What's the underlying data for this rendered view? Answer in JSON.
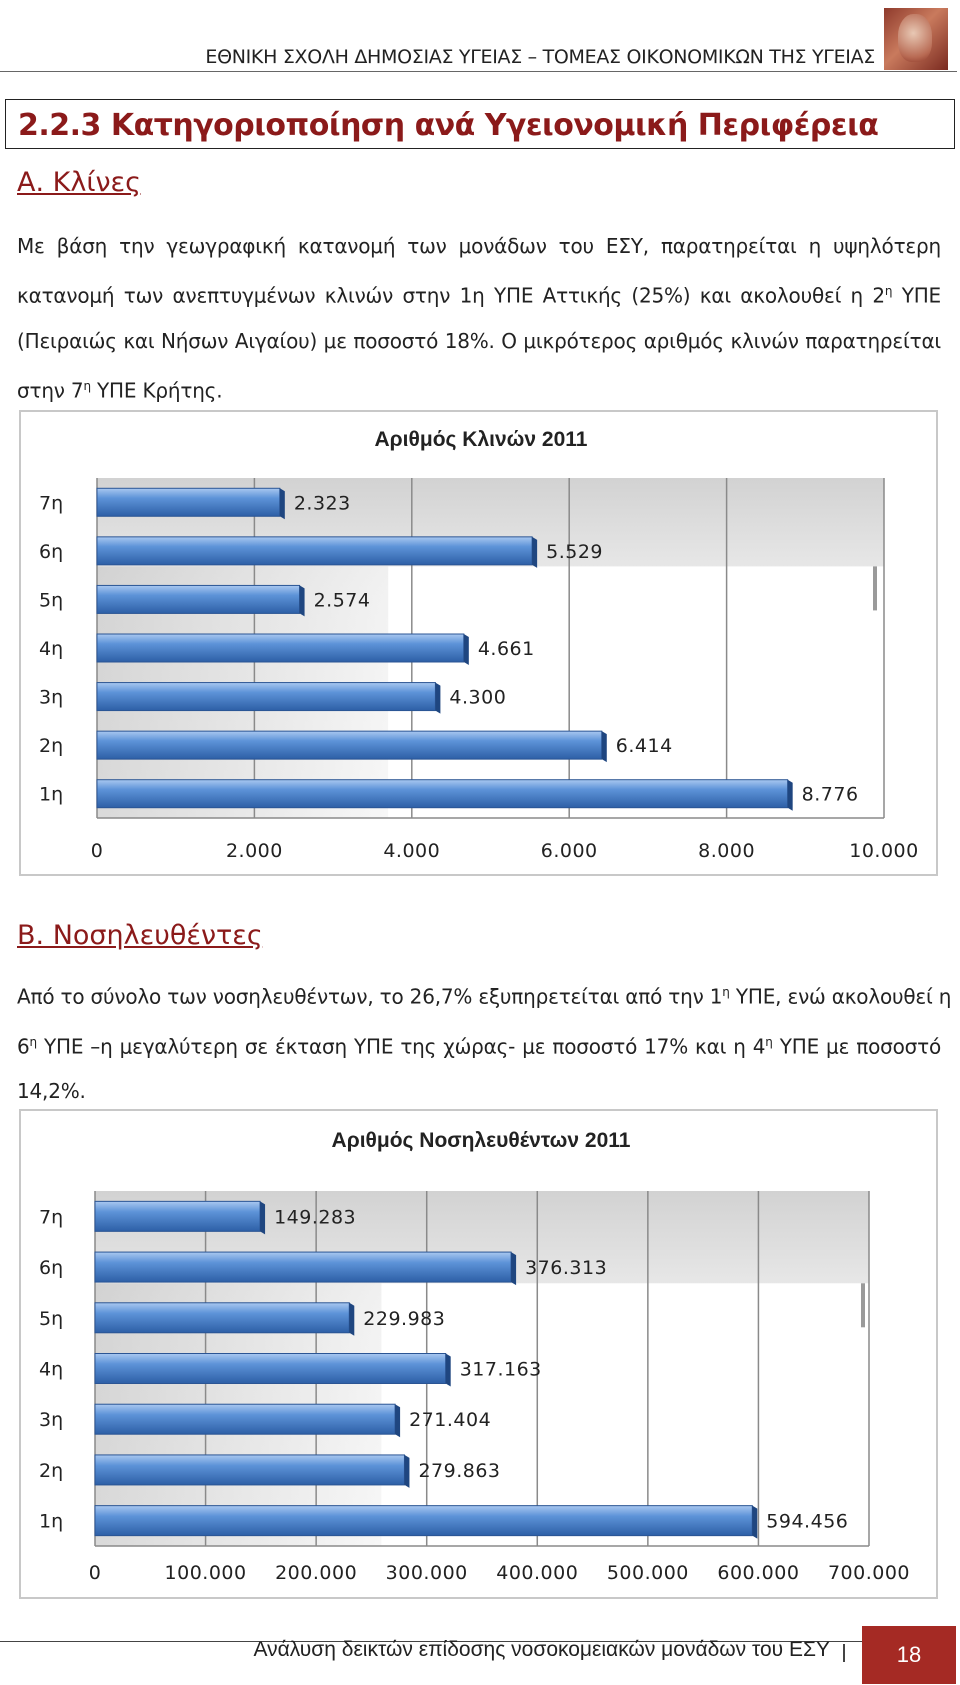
{
  "header": {
    "text": "ΕΘΝΙΚΗ ΣΧΟΛΗ ΔΗΜΟΣΙΑΣ ΥΓΕΙΑΣ – ΤΟΜΕΑΣ ΟΙΚΟΝΟΜΙΚΩΝ ΤΗΣ ΥΓΕΙΑΣ"
  },
  "section": {
    "title": "2.2.3  Κατηγοριοποίηση ανά Υγειονομική Περιφέρεια"
  },
  "partA": {
    "heading": "Α. Κλίνες",
    "l1": "Με βάση την γεωγραφική κατανομή των μονάδων του ΕΣΥ, παρατηρείται η υψηλότερη",
    "l2a": "κατανομή των ανεπτυγμένων κλινών στην 1η ΥΠΕ Αττικής (25%) και ακολουθεί η 2",
    "l2sup": "η",
    "l2b": " ΥΠΕ",
    "l3": "(Πειραιώς και Νήσων Αιγαίου) με ποσοστό 18%. Ο μικρότερος αριθμός κλινών παρατηρείται",
    "l4a": "στην 7",
    "l4sup": "η",
    "l4b": " ΥΠΕ Κρήτης."
  },
  "partB": {
    "heading": "Β. Νοσηλευθέντες",
    "l1a": "Από το σύνολο των νοσηλευθέντων, το 26,7% εξυπηρετείται από την 1",
    "l1sup": "η",
    "l1b": " ΥΠΕ, ενώ ακολουθεί η",
    "l2a": "6",
    "l2sup": "η",
    "l2b": " ΥΠΕ –η μεγαλύτερη σε έκταση ΥΠΕ της χώρας- με ποσοστό 17% και η 4",
    "l2sup2": "η",
    "l2c": " ΥΠΕ με ποσοστό",
    "l3": "14,2%."
  },
  "chart_data": [
    {
      "type": "bar",
      "orientation": "horizontal",
      "title": "Αριθμός Κλινών 2011",
      "categories": [
        "7η",
        "6η",
        "5η",
        "4η",
        "3η",
        "2η",
        "1η"
      ],
      "values": [
        2323,
        5529,
        2574,
        4661,
        4300,
        6414,
        8776
      ],
      "value_labels": [
        "2.323",
        "5.529",
        "2.574",
        "4.661",
        "4.300",
        "6.414",
        "8.776"
      ],
      "xlim": [
        0,
        10000
      ],
      "xticks": [
        "0",
        "2.000",
        "4.000",
        "6.000",
        "8.000",
        "10.000"
      ],
      "bar_color": "#4f86d0",
      "grid": true
    },
    {
      "type": "bar",
      "orientation": "horizontal",
      "title": "Αριθμός Νοσηλευθέντων 2011",
      "categories": [
        "7η",
        "6η",
        "5η",
        "4η",
        "3η",
        "2η",
        "1η"
      ],
      "values": [
        149283,
        376313,
        229983,
        317163,
        271404,
        279863,
        594456
      ],
      "value_labels": [
        "149.283",
        "376.313",
        "229.983",
        "317.163",
        "271.404",
        "279.863",
        "594.456"
      ],
      "xlim": [
        0,
        700000
      ],
      "xticks": [
        "0",
        "100.000",
        "200.000",
        "300.000",
        "400.000",
        "500.000",
        "600.000",
        "700.000"
      ],
      "bar_color": "#4f86d0",
      "grid": true
    }
  ],
  "footer": {
    "text": "Ανάλυση δεικτών επίδοσης νοσοκομειακών μονάδων του ΕΣΥ",
    "page": "18"
  }
}
